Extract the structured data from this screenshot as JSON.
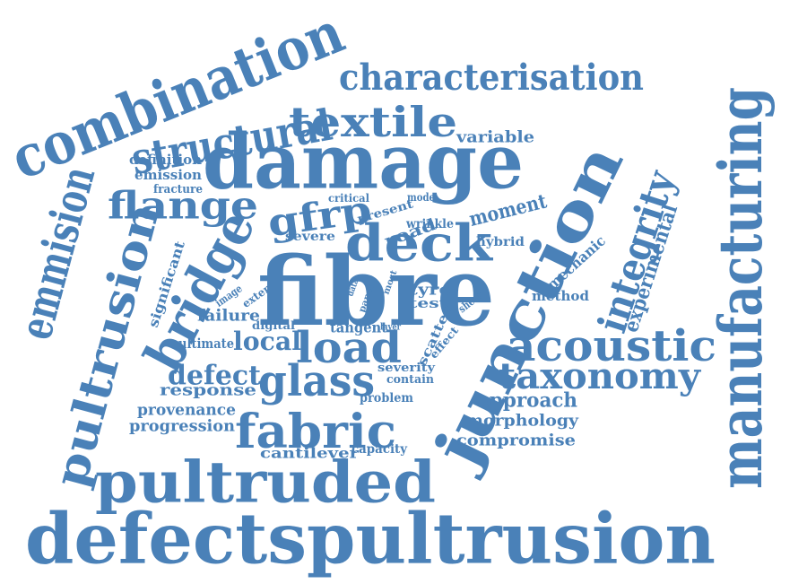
{
  "word_color": "#4a81b8",
  "background": "#ffffff",
  "words": [
    "combination",
    "structural",
    "characterisation",
    "textile",
    "variable",
    "damage",
    "manufacturing",
    "emmision",
    "definition",
    "emission",
    "fracture",
    "flange",
    "critical",
    "present",
    "mode",
    "gfrp",
    "road",
    "wrinkle",
    "moment",
    "integrity",
    "experimental",
    "bridge",
    "deck",
    "severe",
    "hybrid",
    "junction",
    "pultrusion",
    "significant",
    "image",
    "extent",
    "fibre",
    "data",
    "paper",
    "most",
    "tyre",
    "test",
    "shear",
    "mechanic",
    "method",
    "failure",
    "digital",
    "tangent",
    "layer",
    "scatter",
    "effect",
    "ultimate",
    "local",
    "load",
    "acoustic",
    "defect",
    "glass",
    "severity",
    "contain",
    "taxonomy",
    "response",
    "problem",
    "approach",
    "provenance",
    "morphology",
    "progression",
    "fabric",
    "compromise",
    "cantilever",
    "capacity",
    "pultruded",
    "defectspultrusion"
  ]
}
